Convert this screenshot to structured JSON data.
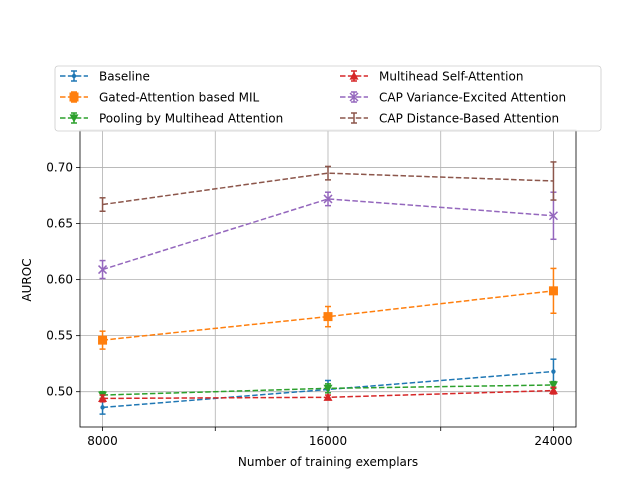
{
  "chart_data": {
    "type": "line",
    "title": "",
    "xlabel": "Number of training exemplars",
    "ylabel": "AUROC",
    "x": [
      8000,
      16000,
      24000
    ],
    "x_ticks": [
      8000,
      12000,
      16000,
      20000,
      24000
    ],
    "x_tick_labels": [
      "8000",
      "",
      "16000",
      "",
      "24000"
    ],
    "xlim": [
      7200,
      24800
    ],
    "y_ticks": [
      0.5,
      0.55,
      0.6,
      0.65,
      0.7
    ],
    "y_tick_labels": [
      "0.50",
      "0.55",
      "0.60",
      "0.65",
      "0.70"
    ],
    "ylim": [
      0.4685,
      0.7335
    ],
    "grid": true,
    "legend_position": "top, above plot",
    "series": [
      {
        "name": "Baseline",
        "color": "#1f77b4",
        "marker": "point",
        "values": [
          0.486,
          0.502,
          0.518
        ],
        "errors": [
          0.006,
          0.008,
          0.011
        ]
      },
      {
        "name": "Gated-Attention based MIL",
        "color": "#ff7f0e",
        "marker": "square",
        "values": [
          0.546,
          0.567,
          0.59
        ],
        "errors": [
          0.008,
          0.009,
          0.02
        ]
      },
      {
        "name": "Pooling by Multihead Attention",
        "color": "#2ca02c",
        "marker": "triangle-down",
        "values": [
          0.497,
          0.503,
          0.506
        ],
        "errors": [
          0.003,
          0.004,
          0.003
        ]
      },
      {
        "name": "Multihead Self-Attention",
        "color": "#d62728",
        "marker": "triangle-up",
        "values": [
          0.494,
          0.495,
          0.501
        ],
        "errors": [
          0.003,
          0.002,
          0.003
        ]
      },
      {
        "name": "CAP Variance-Excited Attention",
        "color": "#9467bd",
        "marker": "x",
        "values": [
          0.609,
          0.672,
          0.657
        ],
        "errors": [
          0.008,
          0.006,
          0.021
        ]
      },
      {
        "name": "CAP Distance-Based Attention",
        "color": "#8c564b",
        "marker": "plus",
        "values": [
          0.667,
          0.695,
          0.688
        ],
        "errors": [
          0.006,
          0.006,
          0.017
        ]
      }
    ]
  }
}
